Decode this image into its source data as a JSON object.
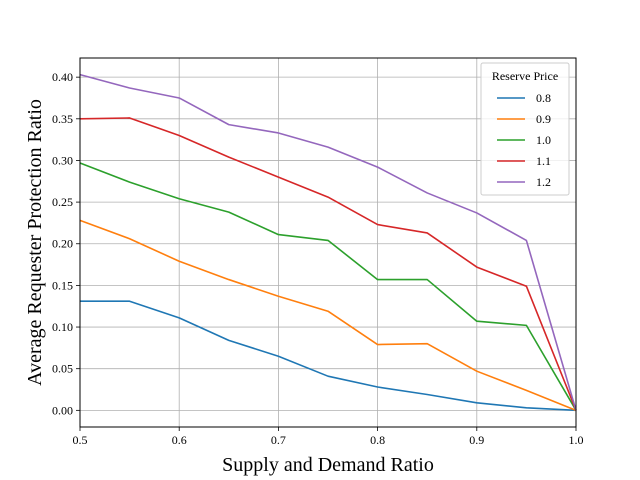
{
  "chart_data": {
    "type": "line",
    "title": "",
    "xlabel": "Supply and Demand Ratio",
    "ylabel": "Average Requester Protection Ratio",
    "xlim": [
      0.5,
      1.0
    ],
    "ylim": [
      -0.02,
      0.423
    ],
    "xticks": [
      0.5,
      0.6,
      0.7,
      0.8,
      0.9,
      1.0
    ],
    "xtick_labels": [
      "0.5",
      "0.6",
      "0.7",
      "0.8",
      "0.9",
      "1.0"
    ],
    "yticks": [
      0.0,
      0.05,
      0.1,
      0.15,
      0.2,
      0.25,
      0.3,
      0.35,
      0.4
    ],
    "ytick_labels": [
      "0.00",
      "0.05",
      "0.10",
      "0.15",
      "0.20",
      "0.25",
      "0.30",
      "0.35",
      "0.40"
    ],
    "grid": true,
    "legend": {
      "title": "Reserve Price",
      "placement": "top-right"
    },
    "x": [
      0.5,
      0.55,
      0.6,
      0.65,
      0.7,
      0.75,
      0.8,
      0.85,
      0.9,
      0.95,
      1.0
    ],
    "series": [
      {
        "name": "0.8",
        "color": "#1f77b4",
        "values": [
          0.131,
          0.131,
          0.111,
          0.084,
          0.065,
          0.041,
          0.028,
          0.019,
          0.009,
          0.003,
          0.0
        ]
      },
      {
        "name": "0.9",
        "color": "#ff7f0e",
        "values": [
          0.228,
          0.206,
          0.179,
          0.157,
          0.137,
          0.119,
          0.079,
          0.08,
          0.047,
          0.024,
          0.0
        ]
      },
      {
        "name": "1.0",
        "color": "#2ca02c",
        "values": [
          0.297,
          0.274,
          0.254,
          0.238,
          0.211,
          0.204,
          0.157,
          0.157,
          0.107,
          0.102,
          0.0
        ]
      },
      {
        "name": "1.1",
        "color": "#d62728",
        "values": [
          0.35,
          0.351,
          0.33,
          0.304,
          0.28,
          0.256,
          0.223,
          0.213,
          0.172,
          0.149,
          0.0
        ]
      },
      {
        "name": "1.2",
        "color": "#9467bd",
        "values": [
          0.403,
          0.387,
          0.375,
          0.343,
          0.333,
          0.316,
          0.292,
          0.261,
          0.237,
          0.204,
          0.0
        ]
      }
    ]
  }
}
